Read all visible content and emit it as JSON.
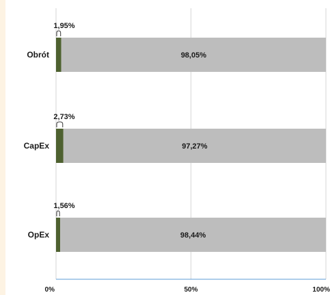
{
  "chart_data": {
    "type": "bar",
    "orientation": "horizontal",
    "stacked": true,
    "categories": [
      "Obrót",
      "CapEx",
      "OpEx"
    ],
    "series": [
      {
        "values": [
          1.95,
          2.73,
          1.56
        ],
        "labels": [
          "1,95%",
          "2,73%",
          "1,56%"
        ],
        "color": "#4e6130"
      },
      {
        "values": [
          98.05,
          97.27,
          98.44
        ],
        "labels": [
          "98,05%",
          "97,27%",
          "98,44%"
        ],
        "color": "#bdbdbd"
      }
    ],
    "xlim": [
      0,
      100
    ],
    "x_ticks": [
      "0%",
      "50%",
      "100%"
    ],
    "grid": true,
    "legend": "none",
    "title": "",
    "xlabel": "",
    "ylabel": ""
  },
  "colors": {
    "grid": "#d6d6d6",
    "axis": "#5b9bd5",
    "background": "#ffffff",
    "strip": "#fdf3e3"
  }
}
